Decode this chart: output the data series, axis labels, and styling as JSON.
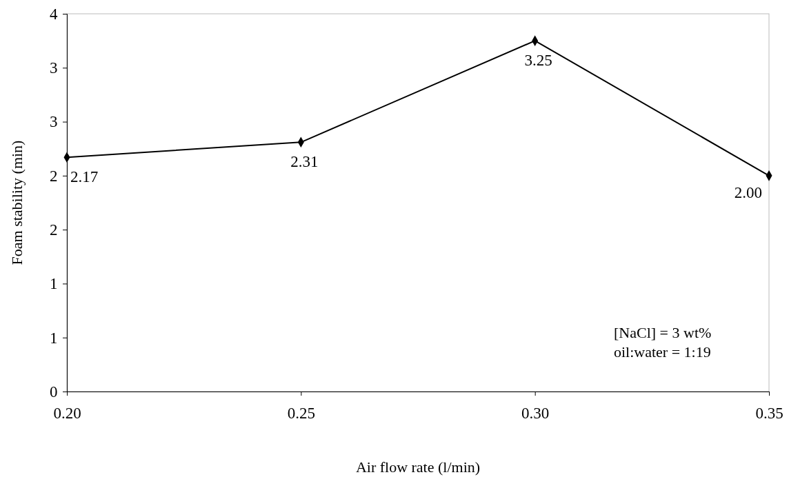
{
  "chart_data": {
    "type": "line",
    "xlabel": "Air flow rate (l/min)",
    "ylabel": "Foam stability (min)",
    "x": [
      0.2,
      0.25,
      0.3,
      0.35
    ],
    "series": [
      {
        "color": "#000000",
        "values": [
          2.17,
          2.31,
          3.25,
          2.0
        ],
        "value_labels": [
          "2.17",
          "2.31",
          "3.25",
          "2.00"
        ]
      }
    ],
    "xlim": [
      0.2,
      0.35
    ],
    "xticks": [
      {
        "value": 0.2,
        "label": "0.20"
      },
      {
        "value": 0.25,
        "label": "0.25"
      },
      {
        "value": 0.3,
        "label": "0.30"
      },
      {
        "value": 0.35,
        "label": "0.35"
      }
    ],
    "ylim": [
      0,
      3.5
    ],
    "yticks": [
      0,
      {
        "value": 0.5,
        "label": "1"
      },
      1,
      {
        "value": 1.5,
        "label": "2"
      },
      2,
      {
        "value": 2.5,
        "label": "3"
      },
      3,
      {
        "value": 3.5,
        "label": "4"
      }
    ],
    "grid": false,
    "marker": "diamond",
    "line_style": "solid",
    "annotations": [
      "[NaCl] = 3 wt%",
      "oil:water = 1:19"
    ]
  }
}
